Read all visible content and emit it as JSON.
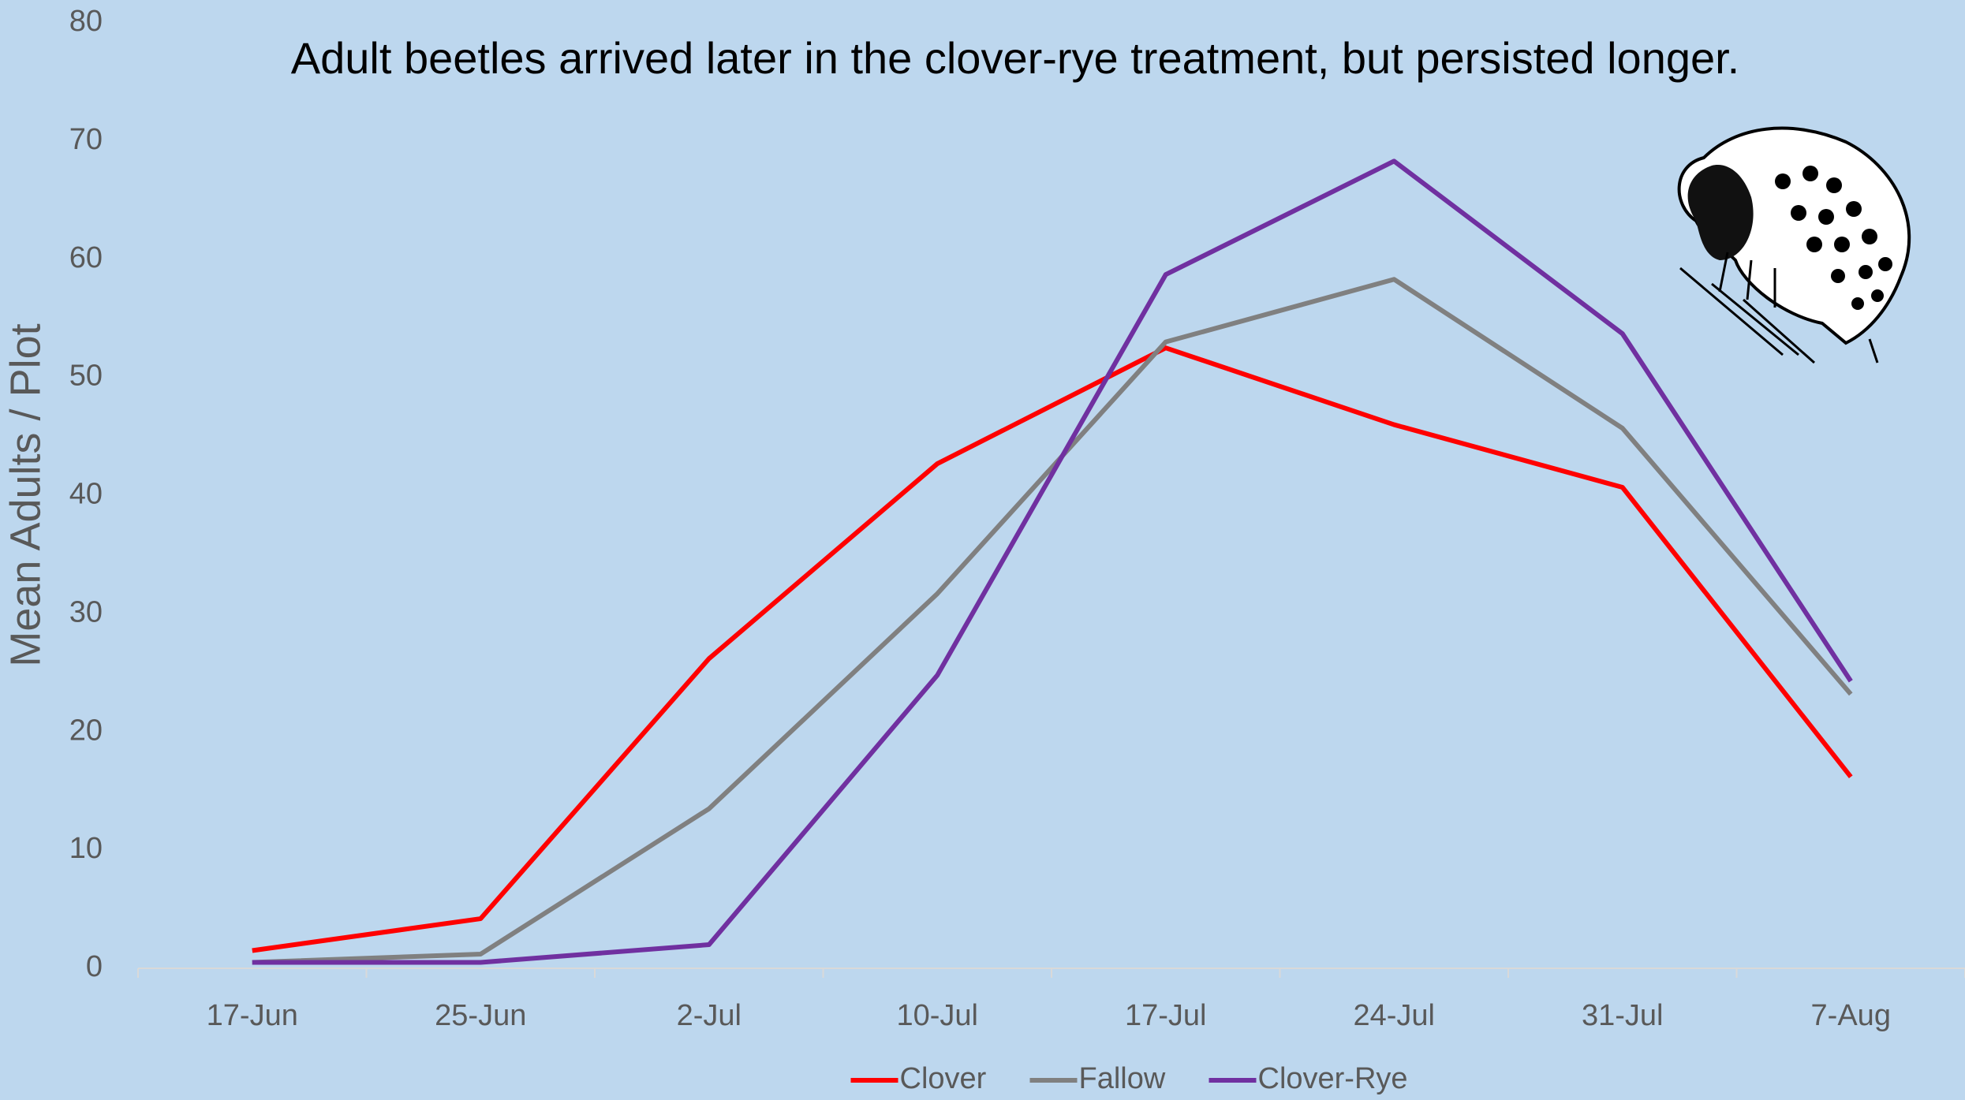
{
  "chart_data": {
    "type": "line",
    "title": "Adult beetles arrived later in the clover-rye treatment, but persisted longer.",
    "y_label": "Mean Adults / Plot",
    "categories": [
      "17-Jun",
      "25-Jun",
      "2-Jul",
      "10-Jul",
      "17-Jul",
      "24-Jul",
      "31-Jul",
      "7-Aug"
    ],
    "series": [
      {
        "name": "Clover",
        "color": "#ff0000",
        "values": [
          1.5,
          4.2,
          26.2,
          42.7,
          52.5,
          46,
          40.7,
          16.2
        ]
      },
      {
        "name": "Fallow",
        "color": "#808080",
        "values": [
          0.5,
          1.2,
          13.5,
          31.7,
          53,
          58.3,
          45.7,
          23.2
        ]
      },
      {
        "name": "Clover-Rye",
        "color": "#7030a0",
        "values": [
          0.5,
          0.5,
          2,
          24.8,
          58.7,
          68.3,
          53.7,
          24.3
        ]
      }
    ],
    "ylim": [
      0,
      80
    ],
    "yticks": [
      0,
      10,
      20,
      30,
      40,
      50,
      60,
      70,
      80
    ],
    "grid": false,
    "legend": "bottom"
  }
}
